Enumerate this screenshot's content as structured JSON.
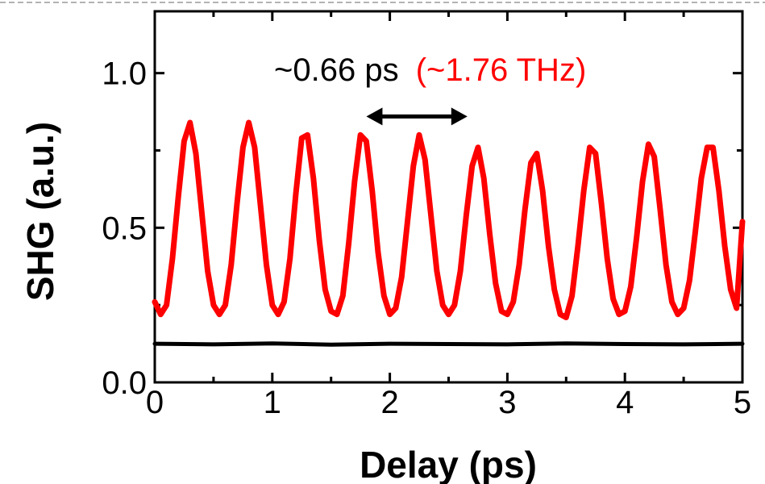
{
  "chart_data": {
    "type": "line",
    "title": "",
    "xlabel": "Delay (ps)",
    "ylabel": "SHG (a.u.)",
    "xlim": [
      0,
      5
    ],
    "ylim": [
      0,
      1.2
    ],
    "x_ticks": [
      0,
      1,
      2,
      3,
      4,
      5
    ],
    "x_tick_labels": [
      "0",
      "1",
      "2",
      "3",
      "4",
      "5"
    ],
    "y_ticks": [
      0.0,
      0.5,
      1.0
    ],
    "y_tick_labels": [
      "0.0",
      "0.5",
      "1.0"
    ],
    "grid": false,
    "legend": "none",
    "series": [
      {
        "color": "#ff0000",
        "x": [
          0.0,
          0.05,
          0.1,
          0.15,
          0.2,
          0.25,
          0.3,
          0.35,
          0.4,
          0.45,
          0.5,
          0.55,
          0.6,
          0.65,
          0.7,
          0.75,
          0.8,
          0.85,
          0.9,
          0.95,
          1.0,
          1.05,
          1.1,
          1.15,
          1.2,
          1.25,
          1.3,
          1.35,
          1.4,
          1.45,
          1.5,
          1.55,
          1.6,
          1.65,
          1.7,
          1.75,
          1.8,
          1.85,
          1.9,
          1.95,
          2.0,
          2.05,
          2.1,
          2.15,
          2.2,
          2.25,
          2.3,
          2.35,
          2.4,
          2.45,
          2.5,
          2.55,
          2.6,
          2.65,
          2.7,
          2.75,
          2.8,
          2.85,
          2.9,
          2.95,
          3.0,
          3.05,
          3.1,
          3.15,
          3.2,
          3.25,
          3.3,
          3.35,
          3.4,
          3.45,
          3.5,
          3.55,
          3.6,
          3.65,
          3.7,
          3.75,
          3.8,
          3.85,
          3.9,
          3.95,
          4.0,
          4.05,
          4.1,
          4.15,
          4.2,
          4.25,
          4.3,
          4.35,
          4.4,
          4.45,
          4.5,
          4.55,
          4.6,
          4.65,
          4.7,
          4.75,
          4.8,
          4.85,
          4.9,
          4.95,
          5.0
        ],
        "y": [
          0.26,
          0.22,
          0.25,
          0.4,
          0.6,
          0.78,
          0.84,
          0.74,
          0.55,
          0.36,
          0.25,
          0.22,
          0.25,
          0.38,
          0.58,
          0.76,
          0.84,
          0.76,
          0.57,
          0.38,
          0.25,
          0.22,
          0.26,
          0.4,
          0.61,
          0.79,
          0.8,
          0.66,
          0.46,
          0.3,
          0.23,
          0.22,
          0.28,
          0.45,
          0.65,
          0.8,
          0.78,
          0.62,
          0.42,
          0.28,
          0.22,
          0.24,
          0.34,
          0.52,
          0.7,
          0.8,
          0.72,
          0.54,
          0.36,
          0.25,
          0.22,
          0.25,
          0.36,
          0.54,
          0.7,
          0.76,
          0.66,
          0.48,
          0.32,
          0.23,
          0.22,
          0.26,
          0.38,
          0.56,
          0.71,
          0.74,
          0.62,
          0.44,
          0.3,
          0.22,
          0.21,
          0.28,
          0.44,
          0.62,
          0.76,
          0.74,
          0.58,
          0.4,
          0.27,
          0.22,
          0.23,
          0.31,
          0.47,
          0.65,
          0.77,
          0.73,
          0.56,
          0.38,
          0.26,
          0.22,
          0.24,
          0.33,
          0.49,
          0.66,
          0.76,
          0.76,
          0.62,
          0.44,
          0.3,
          0.24,
          0.52
        ]
      },
      {
        "color": "#000000",
        "x": [
          0.0,
          0.5,
          1.0,
          1.5,
          2.0,
          2.5,
          3.0,
          3.5,
          4.0,
          4.5,
          5.0
        ],
        "y": [
          0.125,
          0.123,
          0.126,
          0.122,
          0.125,
          0.124,
          0.123,
          0.126,
          0.124,
          0.123,
          0.125
        ]
      }
    ],
    "annotations": [
      {
        "text_black": "~0.66 ps",
        "text_red": "(~1.76 THz)",
        "arrow_x": [
          1.8,
          2.66
        ],
        "arrow_y": 0.86
      }
    ]
  }
}
